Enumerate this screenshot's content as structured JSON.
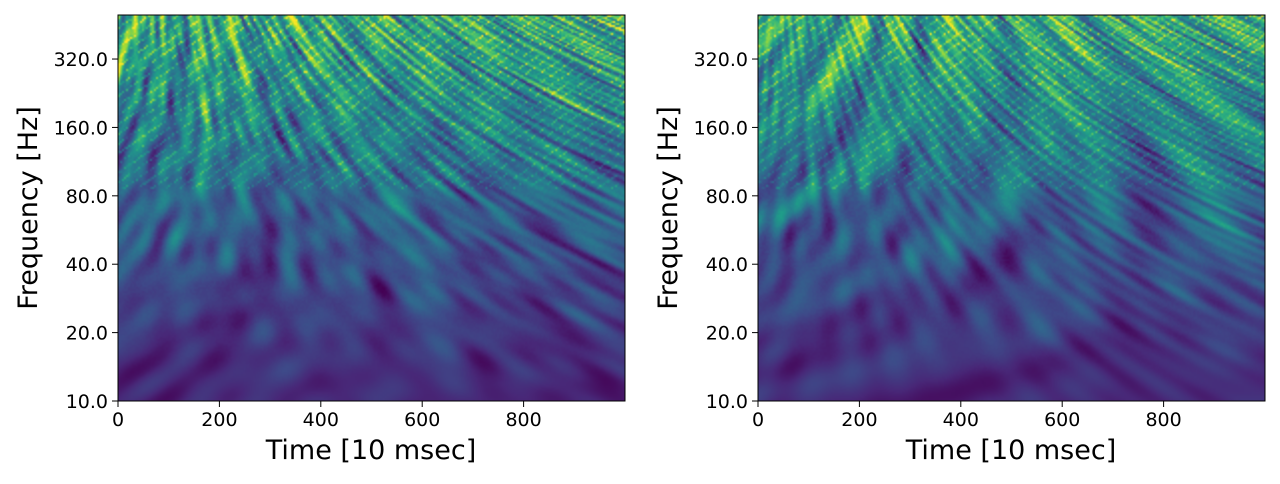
{
  "chart_data": [
    {
      "type": "heatmap",
      "xlabel": "Time [10 msec]",
      "ylabel": "Frequency [Hz]",
      "x_ticks": [
        0,
        200,
        400,
        600,
        800
      ],
      "x_tick_labels": [
        "0",
        "200",
        "400",
        "600",
        "800"
      ],
      "y_ticks": [
        10,
        20,
        40,
        80,
        160,
        320
      ],
      "y_tick_labels": [
        "10.0",
        "20.0",
        "40.0",
        "80.0",
        "160.0",
        "320.0"
      ],
      "xlim": [
        0,
        1000
      ],
      "ylim": [
        10,
        500
      ],
      "y_scale": "log2",
      "grid": false,
      "colormap": "viridis",
      "seed": 7
    },
    {
      "type": "heatmap",
      "xlabel": "Time [10 msec]",
      "ylabel": "Frequency [Hz]",
      "x_ticks": [
        0,
        200,
        400,
        600,
        800
      ],
      "x_tick_labels": [
        "0",
        "200",
        "400",
        "600",
        "800"
      ],
      "y_ticks": [
        10,
        20,
        40,
        80,
        160,
        320
      ],
      "y_tick_labels": [
        "10.0",
        "20.0",
        "40.0",
        "80.0",
        "160.0",
        "320.0"
      ],
      "xlim": [
        0,
        1000
      ],
      "ylim": [
        10,
        500
      ],
      "y_scale": "log2",
      "grid": false,
      "colormap": "viridis",
      "seed": 19
    }
  ]
}
